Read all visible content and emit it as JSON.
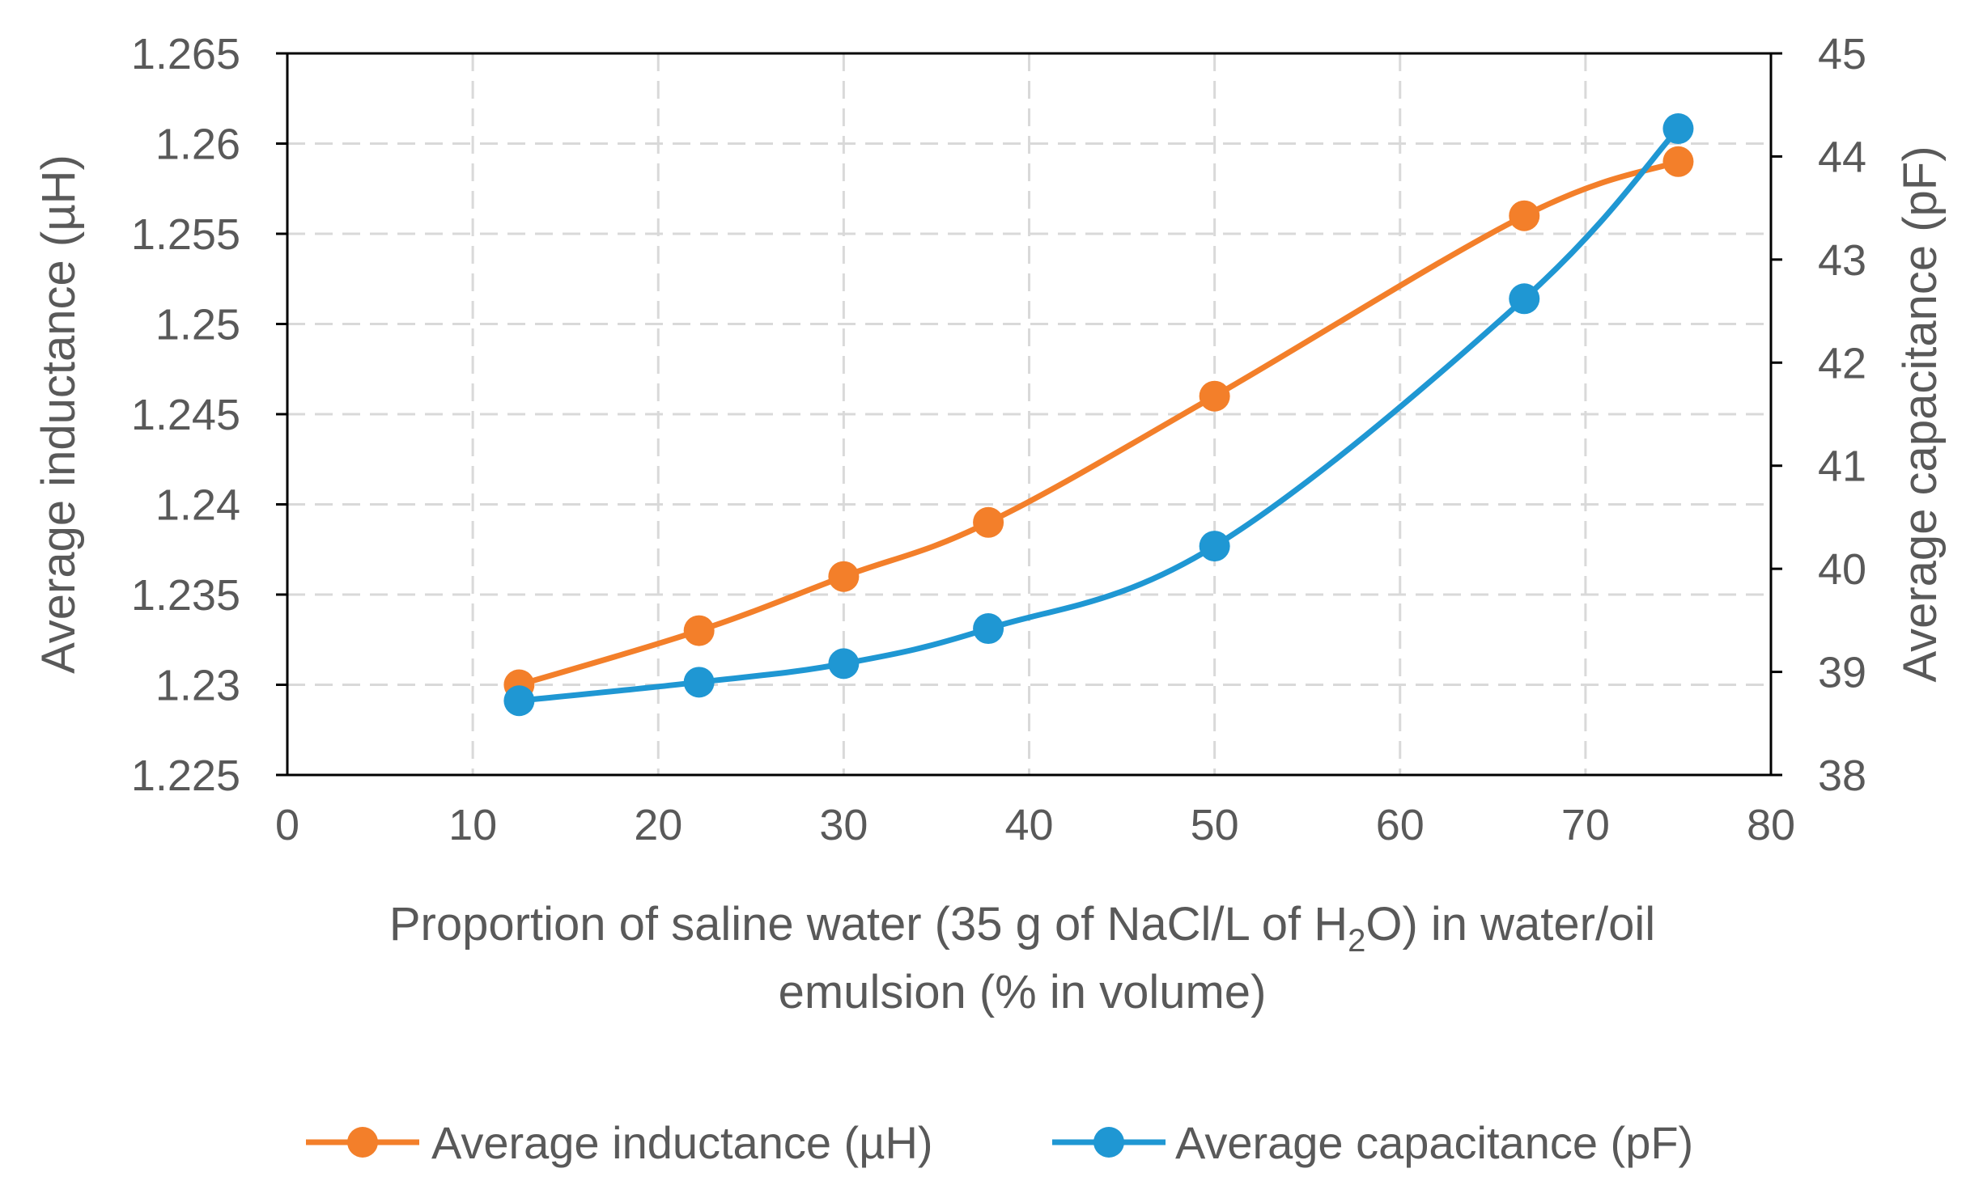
{
  "chart_data": {
    "type": "line",
    "smooth": true,
    "x": [
      12.5,
      22.2,
      30,
      37.8,
      50,
      66.7,
      75
    ],
    "series": [
      {
        "name": "Average inductance (µH)",
        "axis": "left",
        "color": "#F37F2A",
        "values": [
          1.23,
          1.233,
          1.236,
          1.239,
          1.246,
          1.256,
          1.259
        ]
      },
      {
        "name": "Average capacitance (pF)",
        "axis": "right",
        "color": "#1F97D3",
        "values": [
          38.72,
          38.9,
          39.08,
          39.42,
          40.22,
          42.62,
          44.27
        ]
      }
    ],
    "xlim": [
      0,
      80
    ],
    "ylim_left": [
      1.225,
      1.265
    ],
    "ylim_right": [
      38,
      45
    ],
    "x_ticks": [
      "0",
      "10",
      "20",
      "30",
      "40",
      "50",
      "60",
      "70",
      "80"
    ],
    "y_left_ticks": [
      "1.225",
      "1.23",
      "1.235",
      "1.24",
      "1.245",
      "1.25",
      "1.255",
      "1.26",
      "1.265"
    ],
    "y_right_ticks": [
      "38",
      "39",
      "40",
      "41",
      "42",
      "43",
      "44",
      "45"
    ],
    "ylabel_left": "Average inductance (µH)",
    "ylabel_right": "Average capacitance (pF)",
    "xlabel_line1_part1": "Proportion of saline water (35 g of NaCl/L of H",
    "xlabel_line1_sub": "2",
    "xlabel_line1_part2": "O) in water/oil",
    "xlabel_line2": "emulsion (% in volume)",
    "grid": true,
    "grid_style": "dashed",
    "legend_position": "bottom-center"
  },
  "colors": {
    "axis_line": "#000000",
    "grid": "#D9D9D9",
    "text": "#595959"
  }
}
